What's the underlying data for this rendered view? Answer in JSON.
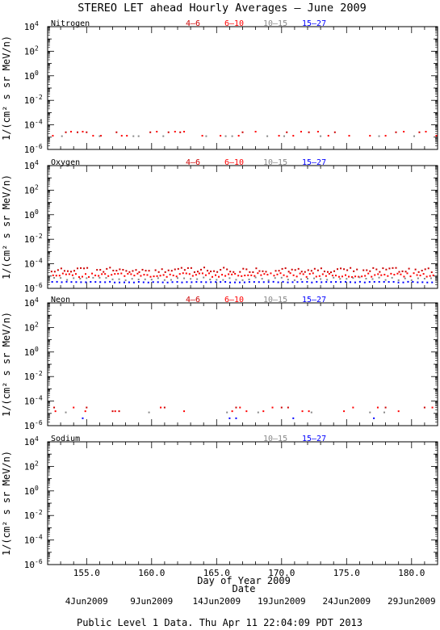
{
  "title": "STEREO LET ahead Hourly Averages – June 2009",
  "xlabel": "Day of Year 2009",
  "date_label": "Date",
  "footer": "Public Level 1 Data. Thu Apr 11 22:04:09 PDT 2013",
  "colors": {
    "4-6": "#cc0000",
    "6-10": "#ff0000",
    "10-15": "#888888",
    "15-27": "#0000ff",
    "axis": "#000000"
  },
  "chart_data": [
    {
      "type": "scatter",
      "panel_label": "Nitrogen",
      "ylabel": "1/(cm² s sr MeV/n)",
      "y_scale": "log",
      "ylim": [
        1e-06,
        10000
      ],
      "xlim": [
        152,
        182
      ],
      "x_ticks": [
        "155.0",
        "160.0",
        "165.0",
        "170.0",
        "175.0",
        "180.0"
      ],
      "y_tick_exponents": [
        "4",
        "2",
        "0",
        "-2",
        "-4",
        "-6"
      ],
      "legend": [
        "4–6",
        "6–10",
        "10–15",
        "15–27"
      ],
      "series": [
        {
          "name": "4-6",
          "points": [
            [
              153.4,
              2.5e-05
            ],
            [
              154.3,
              2.5e-05
            ],
            [
              155.0,
              2.5e-05
            ],
            [
              157.3,
              2.5e-05
            ],
            [
              159.9,
              2.5e-05
            ],
            [
              161.3,
              2.5e-05
            ],
            [
              162.2,
              2.5e-05
            ],
            [
              167.0,
              2.5e-05
            ],
            [
              170.4,
              2.5e-05
            ],
            [
              172.1,
              2.5e-05
            ],
            [
              174.1,
              2.5e-05
            ],
            [
              178.8,
              2.5e-05
            ],
            [
              180.6,
              2.5e-05
            ]
          ]
        },
        {
          "name": "6-10",
          "points": [
            [
              152.4,
              1.3e-05
            ],
            [
              153.8,
              2.8e-05
            ],
            [
              154.7,
              2.8e-05
            ],
            [
              155.5,
              1.3e-05
            ],
            [
              156.1,
              1.3e-05
            ],
            [
              157.7,
              1.3e-05
            ],
            [
              158.1,
              1.3e-05
            ],
            [
              160.4,
              2.8e-05
            ],
            [
              161.8,
              2.8e-05
            ],
            [
              162.5,
              2.8e-05
            ],
            [
              163.9,
              1.3e-05
            ],
            [
              165.3,
              1.3e-05
            ],
            [
              166.7,
              1.3e-05
            ],
            [
              168.0,
              2.8e-05
            ],
            [
              169.8,
              1.3e-05
            ],
            [
              170.9,
              1.3e-05
            ],
            [
              171.5,
              2.8e-05
            ],
            [
              172.8,
              2.8e-05
            ],
            [
              173.6,
              1.3e-05
            ],
            [
              175.2,
              1.3e-05
            ],
            [
              176.8,
              1.3e-05
            ],
            [
              178.0,
              1.3e-05
            ],
            [
              179.4,
              2.8e-05
            ],
            [
              181.1,
              2.8e-05
            ],
            [
              181.9,
              1.3e-05
            ]
          ]
        },
        {
          "name": "10-15",
          "points": [
            [
              153.1,
              1.2e-05
            ],
            [
              156.0,
              1.2e-05
            ],
            [
              158.6,
              1.2e-05
            ],
            [
              159.0,
              1.2e-05
            ],
            [
              160.9,
              1.2e-05
            ],
            [
              164.2,
              1.2e-05
            ],
            [
              165.7,
              1.2e-05
            ],
            [
              166.2,
              1.2e-05
            ],
            [
              168.9,
              1.2e-05
            ],
            [
              170.2,
              1.2e-05
            ],
            [
              173.0,
              1.2e-05
            ],
            [
              177.5,
              1.2e-05
            ],
            [
              180.2,
              1.2e-05
            ]
          ]
        },
        {
          "name": "15-27",
          "points": []
        }
      ]
    },
    {
      "type": "scatter",
      "panel_label": "Oxygen",
      "ylabel": "1/(cm² s sr MeV/n)",
      "y_scale": "log",
      "ylim": [
        1e-06,
        10000
      ],
      "xlim": [
        152,
        182
      ],
      "x_ticks": [
        "155.0",
        "160.0",
        "165.0",
        "170.0",
        "175.0",
        "180.0"
      ],
      "y_tick_exponents": [
        "4",
        "2",
        "0",
        "-2",
        "-4",
        "-6"
      ],
      "legend": [
        "4–6",
        "6–10",
        "10–15",
        "15–27"
      ],
      "series": [
        {
          "name": "4-6",
          "dense": true,
          "step": 0.25,
          "phase": 0.0,
          "center": 3.2e-05,
          "spread": 0.2,
          "points": []
        },
        {
          "name": "6-10",
          "dense": true,
          "step": 0.25,
          "phase": 0.12,
          "center": 1.2e-05,
          "spread": 0.16,
          "points": []
        },
        {
          "name": "10-15",
          "dense": true,
          "step": 0.5,
          "phase": 0.2,
          "center": 6e-06,
          "spread": 0.12,
          "points": []
        },
        {
          "name": "15-27",
          "dense": true,
          "step": 0.37,
          "phase": 0.05,
          "center": 3.2e-06,
          "spread": 0.03,
          "points": []
        }
      ]
    },
    {
      "type": "scatter",
      "panel_label": "Neon",
      "ylabel": "1/(cm² s sr MeV/n)",
      "y_scale": "log",
      "ylim": [
        1e-06,
        10000
      ],
      "xlim": [
        152,
        182
      ],
      "x_ticks": [
        "155.0",
        "160.0",
        "165.0",
        "170.0",
        "175.0",
        "180.0"
      ],
      "y_tick_exponents": [
        "4",
        "2",
        "0",
        "-2",
        "-4",
        "-6"
      ],
      "legend": [
        "4–6",
        "6–10",
        "10–15",
        "15–27"
      ],
      "series": [
        {
          "name": "4-6",
          "points": [
            [
              152.5,
              3e-05
            ],
            [
              155.0,
              3e-05
            ],
            [
              157.0,
              1.5e-05
            ],
            [
              157.5,
              1.5e-05
            ],
            [
              161.0,
              3e-05
            ],
            [
              166.5,
              3e-05
            ],
            [
              170.0,
              3e-05
            ],
            [
              170.5,
              3e-05
            ],
            [
              178.0,
              3e-05
            ],
            [
              181.0,
              3e-05
            ]
          ]
        },
        {
          "name": "6-10",
          "points": [
            [
              152.6,
              1.5e-05
            ],
            [
              154.0,
              3e-05
            ],
            [
              154.9,
              1.5e-05
            ],
            [
              157.2,
              1.5e-05
            ],
            [
              160.7,
              3e-05
            ],
            [
              162.5,
              1.5e-05
            ],
            [
              166.2,
              1.5e-05
            ],
            [
              166.8,
              3e-05
            ],
            [
              167.3,
              1.5e-05
            ],
            [
              168.6,
              1.5e-05
            ],
            [
              169.3,
              3e-05
            ],
            [
              171.6,
              1.5e-05
            ],
            [
              172.1,
              1.5e-05
            ],
            [
              174.8,
              1.5e-05
            ],
            [
              175.5,
              3e-05
            ],
            [
              177.4,
              3e-05
            ],
            [
              179.0,
              1.5e-05
            ],
            [
              181.6,
              3e-05
            ]
          ]
        },
        {
          "name": "10-15",
          "points": [
            [
              153.4,
              1.2e-05
            ],
            [
              159.8,
              1.2e-05
            ],
            [
              165.8,
              1.2e-05
            ],
            [
              168.2,
              1.2e-05
            ],
            [
              172.3,
              1.2e-05
            ],
            [
              176.8,
              1.2e-05
            ],
            [
              177.9,
              1.2e-05
            ]
          ]
        },
        {
          "name": "15-27",
          "points": [
            [
              154.7,
              4e-06
            ],
            [
              166.0,
              4e-06
            ],
            [
              166.5,
              4e-06
            ],
            [
              170.9,
              4e-06
            ],
            [
              177.1,
              4e-06
            ]
          ]
        }
      ]
    },
    {
      "type": "scatter",
      "panel_label": "Sodium",
      "ylabel": "1/(cm² s sr MeV/n)",
      "y_scale": "log",
      "ylim": [
        1e-06,
        10000
      ],
      "xlim": [
        152,
        182
      ],
      "x_ticks": [
        "155.0",
        "160.0",
        "165.0",
        "170.0",
        "175.0",
        "180.0"
      ],
      "y_tick_exponents": [
        "4",
        "2",
        "0",
        "-2",
        "-4",
        "-6"
      ],
      "legend": [
        "10–15",
        "15–27"
      ],
      "series": [
        {
          "name": "10-15",
          "points": []
        },
        {
          "name": "15-27",
          "points": []
        }
      ]
    }
  ],
  "date_ticks": [
    "4Jun2009",
    "9Jun2009",
    "14Jun2009",
    "19Jun2009",
    "24Jun2009",
    "29Jun2009"
  ]
}
